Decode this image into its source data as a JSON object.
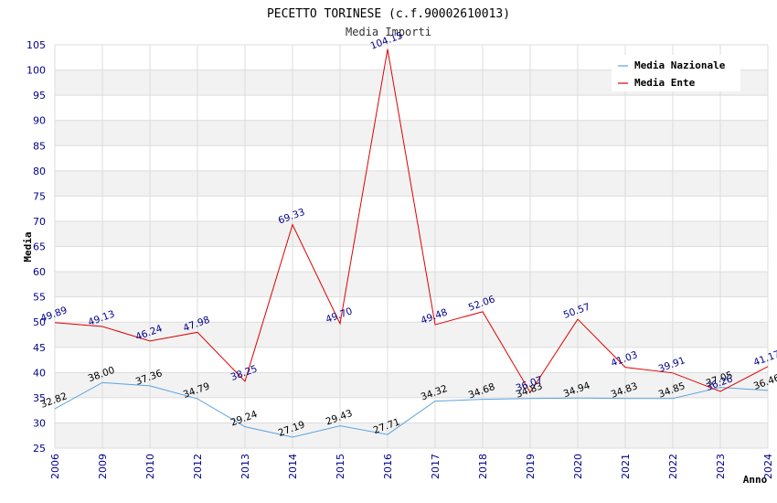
{
  "chart_data": {
    "type": "line",
    "title": "PECETTO TORINESE (c.f.90002610013)",
    "subtitle": "Media Importi",
    "xlabel": "Anno",
    "ylabel": "Media",
    "ylim": [
      25,
      105
    ],
    "ytick_step": 5,
    "grid": true,
    "legend_position": "top-right",
    "categories": [
      "2006",
      "2009",
      "2010",
      "2012",
      "2013",
      "2014",
      "2015",
      "2016",
      "2017",
      "2018",
      "2019",
      "2020",
      "2021",
      "2022",
      "2023",
      "2024"
    ],
    "series": [
      {
        "name": "Media Nazionale",
        "color": "#5ba3e0",
        "values": [
          32.82,
          38.0,
          37.36,
          34.79,
          29.24,
          27.19,
          29.43,
          27.71,
          34.32,
          34.68,
          34.83,
          34.94,
          34.83,
          34.85,
          37.05,
          36.46
        ],
        "labels": [
          "32.82",
          "38.00",
          "37.36",
          "34.79",
          "29.24",
          "27.19",
          "29.43",
          "27.71",
          "34.32",
          "34.68",
          "34.83",
          "34.94",
          "34.83",
          "34.85",
          "37.05",
          "36.46"
        ]
      },
      {
        "name": "Media Ente",
        "color": "#e00000",
        "values": [
          49.89,
          49.13,
          46.24,
          47.98,
          38.25,
          69.33,
          49.7,
          104.15,
          49.48,
          52.06,
          36.07,
          50.57,
          41.03,
          39.91,
          36.26,
          41.17
        ],
        "labels": [
          "49.89",
          "49.13",
          "46.24",
          "47.98",
          "38.25",
          "69.33",
          "49.70",
          "104.15",
          "49.48",
          "52.06",
          "36.07",
          "50.57",
          "41.03",
          "39.91",
          "36.26",
          "41.17"
        ]
      }
    ]
  }
}
